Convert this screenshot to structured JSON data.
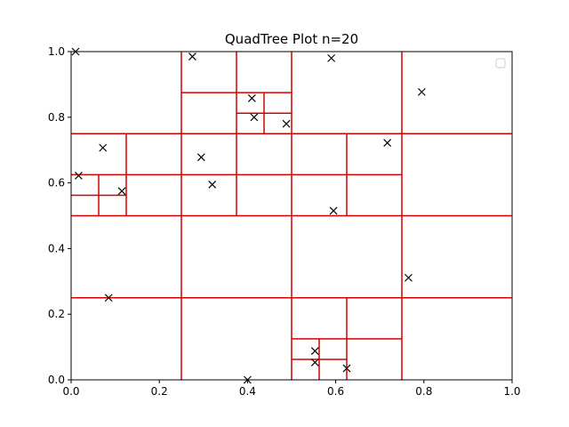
{
  "chart_data": {
    "type": "scatter",
    "title": "QuadTree Plot n=20",
    "xlabel": "",
    "ylabel": "",
    "xlim": [
      0.0,
      1.0
    ],
    "ylim": [
      0.0,
      1.0
    ],
    "xticks": [
      "0.0",
      "0.2",
      "0.4",
      "0.6",
      "0.8",
      "1.0"
    ],
    "yticks": [
      "0.0",
      "0.2",
      "0.4",
      "0.6",
      "0.8",
      "1.0"
    ],
    "grid": false,
    "legend": {
      "placement": "top-right",
      "entries": []
    },
    "colors": {
      "points": "#000000",
      "quadtree": "#d40000",
      "axes": "#000000"
    },
    "points": [
      {
        "x": 0.01,
        "y": 1.0
      },
      {
        "x": 0.275,
        "y": 0.985
      },
      {
        "x": 0.59,
        "y": 0.98
      },
      {
        "x": 0.795,
        "y": 0.877
      },
      {
        "x": 0.41,
        "y": 0.858
      },
      {
        "x": 0.415,
        "y": 0.8
      },
      {
        "x": 0.488,
        "y": 0.78
      },
      {
        "x": 0.072,
        "y": 0.707
      },
      {
        "x": 0.717,
        "y": 0.722
      },
      {
        "x": 0.295,
        "y": 0.678
      },
      {
        "x": 0.017,
        "y": 0.622
      },
      {
        "x": 0.32,
        "y": 0.595
      },
      {
        "x": 0.115,
        "y": 0.575
      },
      {
        "x": 0.595,
        "y": 0.515
      },
      {
        "x": 0.765,
        "y": 0.311
      },
      {
        "x": 0.085,
        "y": 0.25
      },
      {
        "x": 0.553,
        "y": 0.088
      },
      {
        "x": 0.553,
        "y": 0.053
      },
      {
        "x": 0.625,
        "y": 0.035
      },
      {
        "x": 0.4,
        "y": 0.0
      }
    ],
    "quadtree_segments": [
      {
        "x1": 0.0,
        "y1": 0.5,
        "x2": 1.0,
        "y2": 0.5
      },
      {
        "x1": 0.5,
        "y1": 0.0,
        "x2": 0.5,
        "y2": 1.0
      },
      {
        "x1": 0.0,
        "y1": 0.75,
        "x2": 0.5,
        "y2": 0.75
      },
      {
        "x1": 0.25,
        "y1": 0.5,
        "x2": 0.25,
        "y2": 1.0
      },
      {
        "x1": 0.5,
        "y1": 0.75,
        "x2": 1.0,
        "y2": 0.75
      },
      {
        "x1": 0.75,
        "y1": 0.5,
        "x2": 0.75,
        "y2": 1.0
      },
      {
        "x1": 0.0,
        "y1": 0.25,
        "x2": 0.5,
        "y2": 0.25
      },
      {
        "x1": 0.25,
        "y1": 0.0,
        "x2": 0.25,
        "y2": 0.5
      },
      {
        "x1": 0.5,
        "y1": 0.25,
        "x2": 1.0,
        "y2": 0.25
      },
      {
        "x1": 0.75,
        "y1": 0.0,
        "x2": 0.75,
        "y2": 0.5
      },
      {
        "x1": 0.0,
        "y1": 0.625,
        "x2": 0.25,
        "y2": 0.625
      },
      {
        "x1": 0.125,
        "y1": 0.5,
        "x2": 0.125,
        "y2": 0.75
      },
      {
        "x1": 0.0,
        "y1": 0.5625,
        "x2": 0.125,
        "y2": 0.5625
      },
      {
        "x1": 0.0625,
        "y1": 0.5,
        "x2": 0.0625,
        "y2": 0.625
      },
      {
        "x1": 0.25,
        "y1": 0.875,
        "x2": 0.5,
        "y2": 0.875
      },
      {
        "x1": 0.375,
        "y1": 0.75,
        "x2": 0.375,
        "y2": 1.0
      },
      {
        "x1": 0.375,
        "y1": 0.8125,
        "x2": 0.5,
        "y2": 0.8125
      },
      {
        "x1": 0.4375,
        "y1": 0.75,
        "x2": 0.4375,
        "y2": 0.875
      },
      {
        "x1": 0.25,
        "y1": 0.625,
        "x2": 0.5,
        "y2": 0.625
      },
      {
        "x1": 0.375,
        "y1": 0.5,
        "x2": 0.375,
        "y2": 0.75
      },
      {
        "x1": 0.5,
        "y1": 0.625,
        "x2": 0.75,
        "y2": 0.625
      },
      {
        "x1": 0.625,
        "y1": 0.5,
        "x2": 0.625,
        "y2": 0.75
      },
      {
        "x1": 0.5,
        "y1": 0.125,
        "x2": 0.75,
        "y2": 0.125
      },
      {
        "x1": 0.625,
        "y1": 0.0,
        "x2": 0.625,
        "y2": 0.25
      },
      {
        "x1": 0.5,
        "y1": 0.0625,
        "x2": 0.625,
        "y2": 0.0625
      },
      {
        "x1": 0.5625,
        "y1": 0.0,
        "x2": 0.5625,
        "y2": 0.125
      }
    ]
  }
}
